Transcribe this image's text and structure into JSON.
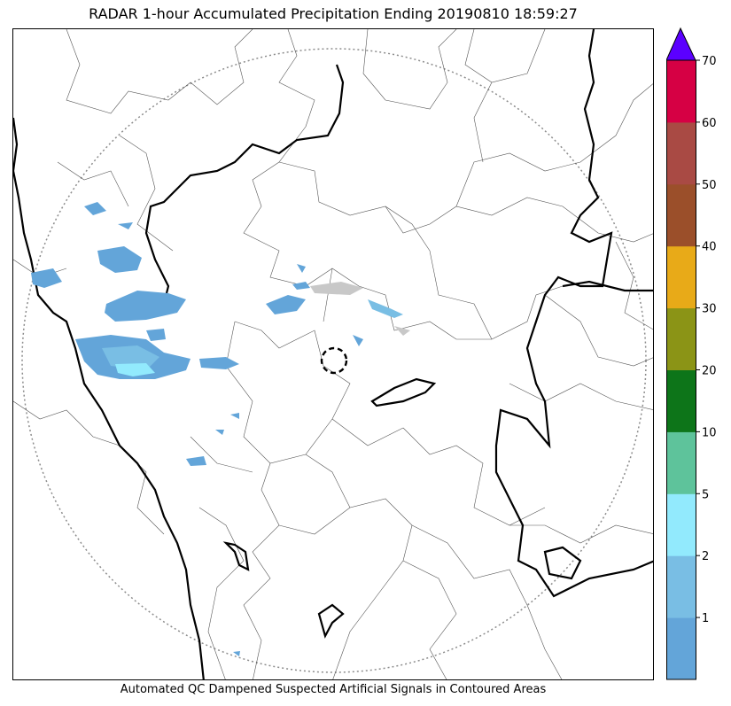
{
  "title": "RADAR 1-hour Accumulated Precipitation Ending 20190810 18:59:27",
  "caption": "Automated QC Dampened Suspected Artificial Signals in Contoured Areas",
  "colorbar": {
    "extend_color": "#5b00ff",
    "bands": [
      {
        "color": "#63a5d9"
      },
      {
        "color": "#79bee4"
      },
      {
        "color": "#92eafd"
      },
      {
        "color": "#5ec39b"
      },
      {
        "color": "#0d7519"
      },
      {
        "color": "#8b9416"
      },
      {
        "color": "#e8aa18"
      },
      {
        "color": "#9b4f2a"
      },
      {
        "color": "#a94a44"
      },
      {
        "color": "#d60044"
      }
    ],
    "tick_labels": [
      "1",
      "2",
      "5",
      "10",
      "20",
      "30",
      "40",
      "50",
      "60",
      "70"
    ]
  },
  "map": {
    "range_ring_color": "#8c8c8c",
    "precip_light_color": "#63a5d9",
    "precip_medium_color": "#79bee4",
    "precip_heavy_color": "#92eafd",
    "qc_artifact_color": "#c8c8c8",
    "radar_site_marker": "dashed-circle"
  }
}
